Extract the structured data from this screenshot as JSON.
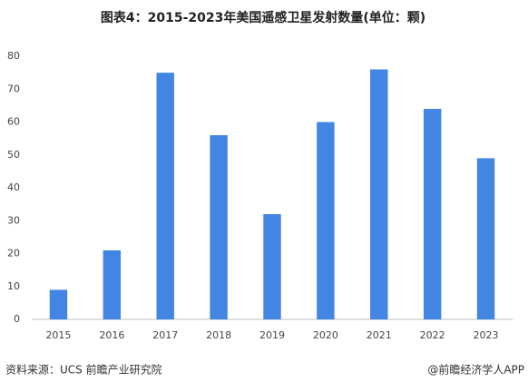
{
  "chart_data": {
    "type": "bar",
    "title": "图表4：2015-2023年美国遥感卫星发射数量(单位：颗)",
    "categories": [
      "2015",
      "2016",
      "2017",
      "2018",
      "2019",
      "2020",
      "2021",
      "2022",
      "2023"
    ],
    "values": [
      9,
      21,
      75,
      56,
      32,
      60,
      76,
      64,
      49
    ],
    "color": "#4285e3",
    "ylim": [
      0,
      80
    ],
    "yticks": [
      0,
      10,
      20,
      30,
      40,
      50,
      60,
      70,
      80
    ],
    "grid": false,
    "source": "资料来源：UCS 前瞻产业研究院",
    "credit": "@前瞻经济学人APP"
  }
}
